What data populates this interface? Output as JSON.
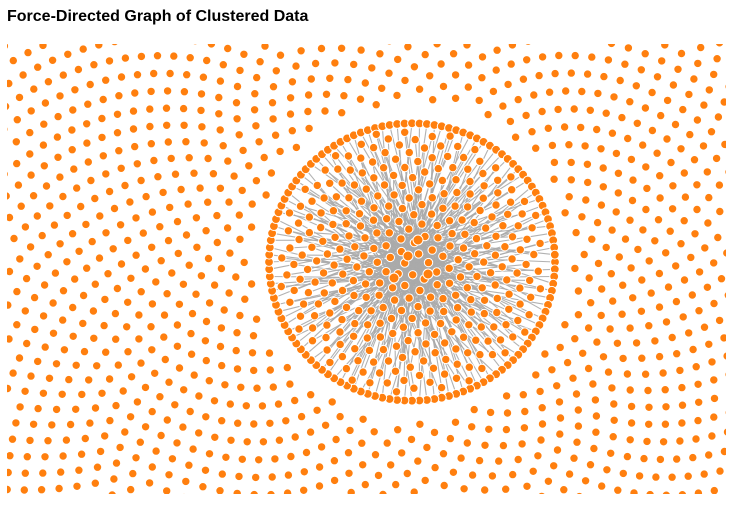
{
  "header": {
    "title": "Force-Directed Graph of Clustered Data"
  },
  "graph": {
    "node_color": "#ff7f0e",
    "node_stroke": "#ffffff",
    "link_color": "#aaaaaa",
    "background": "#ffffff",
    "cluster_count": 1,
    "layout": "phyllotaxis-background-with-central-cluster"
  }
}
